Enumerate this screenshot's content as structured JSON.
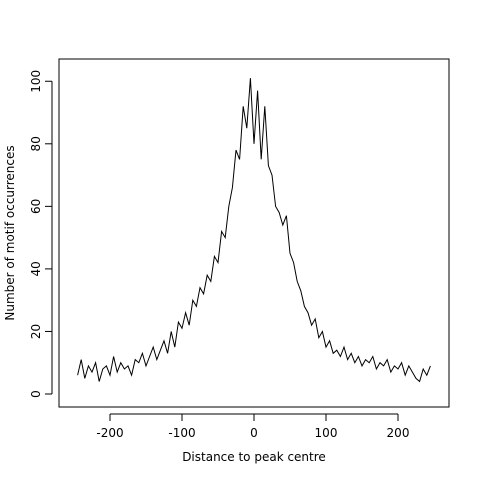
{
  "chart_data": {
    "type": "line",
    "xlabel": "Distance to peak centre",
    "ylabel": "Number of motif occurrences",
    "xlim": [
      -250,
      250
    ],
    "ylim": [
      0,
      102
    ],
    "xticks": [
      -200,
      -100,
      0,
      100,
      200
    ],
    "yticks": [
      0,
      20,
      40,
      60,
      80,
      100
    ],
    "xtick_labels": [
      "-200",
      "-100",
      "0",
      "100",
      "200"
    ],
    "ytick_labels": [
      "0",
      "20",
      "40",
      "60",
      "80",
      "100"
    ],
    "grid": false,
    "line_color": "#000000",
    "series": [
      {
        "x": [
          -245,
          -240,
          -235,
          -230,
          -225,
          -220,
          -215,
          -210,
          -205,
          -200,
          -195,
          -190,
          -185,
          -180,
          -175,
          -170,
          -165,
          -160,
          -155,
          -150,
          -145,
          -140,
          -135,
          -130,
          -125,
          -120,
          -115,
          -110,
          -105,
          -100,
          -95,
          -90,
          -85,
          -80,
          -75,
          -70,
          -65,
          -60,
          -55,
          -50,
          -45,
          -40,
          -35,
          -30,
          -25,
          -20,
          -15,
          -10,
          -5,
          0,
          5,
          10,
          15,
          20,
          25,
          30,
          35,
          40,
          45,
          50,
          55,
          60,
          65,
          70,
          75,
          80,
          85,
          90,
          95,
          100,
          105,
          110,
          115,
          120,
          125,
          130,
          135,
          140,
          145,
          150,
          155,
          160,
          165,
          170,
          175,
          180,
          185,
          190,
          195,
          200,
          205,
          210,
          215,
          220,
          225,
          230,
          235,
          240,
          245
        ],
        "values": [
          6,
          11,
          5,
          9,
          7,
          10,
          4,
          8,
          9,
          6,
          12,
          7,
          10,
          8,
          9,
          6,
          11,
          10,
          13,
          9,
          12,
          15,
          11,
          14,
          17,
          13,
          20,
          15,
          23,
          21,
          26,
          22,
          30,
          28,
          34,
          32,
          38,
          36,
          44,
          42,
          52,
          50,
          60,
          66,
          78,
          75,
          92,
          85,
          101,
          80,
          97,
          75,
          92,
          73,
          70,
          60,
          58,
          54,
          57,
          45,
          42,
          36,
          33,
          28,
          26,
          22,
          24,
          18,
          20,
          15,
          17,
          13,
          14,
          12,
          15,
          11,
          13,
          10,
          12,
          9,
          11,
          10,
          12,
          8,
          10,
          9,
          11,
          7,
          9,
          8,
          10,
          6,
          9,
          7,
          5,
          4,
          8,
          6,
          9
        ]
      }
    ]
  }
}
